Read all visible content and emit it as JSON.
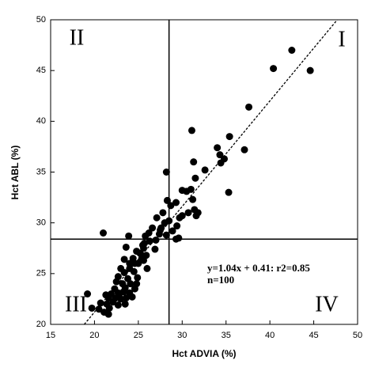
{
  "chart_data": {
    "type": "scatter",
    "x_label": "Hct ADVIA (%)",
    "y_label": "Hct ABL (%)",
    "xlim": [
      15,
      50
    ],
    "ylim": [
      20,
      50
    ],
    "xticks": [
      15,
      20,
      25,
      30,
      35,
      40,
      45,
      50
    ],
    "yticks": [
      20,
      25,
      30,
      35,
      40,
      45,
      50
    ],
    "color": "#000000",
    "reference_lines": {
      "x": 28.5,
      "y": 28.4
    },
    "trendline": {
      "slope": 1.04,
      "intercept": 0.41
    },
    "quadrant_labels": [
      "II",
      "I",
      "III",
      "IV"
    ],
    "annotations": [
      "y=1.04x + 0.41:  r2=0.85",
      "n=100"
    ],
    "x": [
      44.6,
      42.5,
      40.4,
      37.6,
      37.1,
      35.4,
      34.0,
      34.3,
      34.8,
      34.4,
      35.3,
      32.6,
      31.1,
      31.3,
      31.5,
      31.0,
      31.2,
      31.4,
      30.0,
      30.5,
      30.7,
      31.8,
      31.6,
      29.3,
      28.2,
      30.0,
      29.7,
      29.4,
      28.7,
      28.3,
      28.5,
      27.8,
      27.1,
      26.6,
      27.5,
      28.2,
      29.3,
      29.6,
      26.2,
      25.8,
      25.7,
      26.3,
      27.0,
      27.4,
      26.9,
      25.6,
      25.2,
      25.4,
      24.8,
      24.4,
      23.6,
      23.9,
      21.0,
      23.4,
      24.0,
      24.6,
      25.9,
      25.6,
      25.0,
      24.0,
      23.0,
      23.4,
      24.5,
      22.7,
      23.8,
      24.9,
      22.5,
      23.2,
      24.1,
      23.5,
      22.3,
      24.6,
      21.9,
      22.7,
      23.3,
      24.0,
      21.6,
      22.4,
      23.0,
      23.6,
      24.3,
      21.4,
      22.1,
      20.7,
      22.7,
      23.5,
      21.7,
      22.8,
      21.1,
      21.6,
      19.7,
      20.5,
      19.2,
      21.3,
      24.8,
      25.5,
      26.0,
      27.6,
      28.0,
      28.9
    ],
    "y": [
      45.0,
      47.0,
      45.2,
      41.4,
      37.2,
      38.5,
      37.4,
      36.7,
      36.3,
      35.9,
      33.0,
      35.2,
      39.1,
      36.0,
      34.4,
      33.3,
      32.3,
      31.3,
      33.2,
      33.1,
      31.0,
      31.0,
      30.7,
      32.0,
      35.0,
      30.7,
      30.5,
      29.7,
      31.7,
      32.2,
      30.2,
      31.0,
      30.5,
      29.5,
      29.3,
      28.8,
      28.4,
      28.5,
      29.0,
      28.7,
      28.0,
      28.2,
      28.3,
      28.9,
      27.4,
      27.5,
      27.0,
      26.5,
      27.2,
      26.5,
      27.6,
      28.7,
      29.0,
      26.4,
      26.0,
      26.0,
      26.8,
      26.3,
      26.0,
      25.5,
      25.5,
      25.1,
      25.2,
      24.7,
      24.5,
      24.6,
      24.2,
      24.0,
      24.0,
      23.6,
      23.5,
      23.5,
      23.0,
      23.1,
      23.2,
      23.1,
      22.6,
      22.6,
      22.5,
      22.6,
      22.7,
      22.0,
      22.2,
      22.1,
      21.9,
      22.0,
      21.6,
      22.9,
      21.2,
      21.0,
      21.6,
      21.5,
      23.0,
      22.9,
      24.0,
      27.8,
      25.5,
      29.5,
      30.0,
      29.2
    ]
  }
}
